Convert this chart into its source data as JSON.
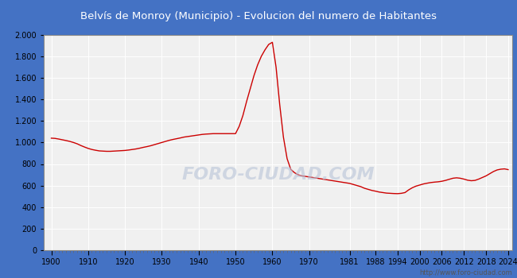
{
  "title": "Belvís de Monroy (Municipio) - Evolucion del numero de Habitantes",
  "title_color": "#ffffff",
  "title_bg_color": "#4472c4",
  "plot_bg_color": "#f0f0f0",
  "grid_color": "#ffffff",
  "line_color": "#cc0000",
  "watermark": "FORO-CIUDAD.COM",
  "footer": "http://www.foro-ciudad.com",
  "ylim": [
    0,
    2000
  ],
  "yticks": [
    0,
    200,
    400,
    600,
    800,
    1000,
    1200,
    1400,
    1600,
    1800,
    2000
  ],
  "ytick_labels": [
    "0",
    "200",
    "400",
    "600",
    "800",
    "1.000",
    "1.200",
    "1.400",
    "1.600",
    "1.800",
    "2.000"
  ],
  "xtick_labels": [
    "1900",
    "1910",
    "1920",
    "1930",
    "1940",
    "1950",
    "1960",
    "1970",
    "1981",
    "1988",
    "1994",
    "2000",
    "2006",
    "2012",
    "2018",
    "2024"
  ],
  "data": [
    [
      1900,
      1040
    ],
    [
      1901,
      1038
    ],
    [
      1902,
      1032
    ],
    [
      1903,
      1025
    ],
    [
      1904,
      1018
    ],
    [
      1905,
      1010
    ],
    [
      1906,
      1000
    ],
    [
      1907,
      988
    ],
    [
      1908,
      972
    ],
    [
      1909,
      958
    ],
    [
      1910,
      945
    ],
    [
      1911,
      935
    ],
    [
      1912,
      928
    ],
    [
      1913,
      922
    ],
    [
      1914,
      920
    ],
    [
      1915,
      918
    ],
    [
      1916,
      918
    ],
    [
      1917,
      920
    ],
    [
      1918,
      922
    ],
    [
      1919,
      924
    ],
    [
      1920,
      926
    ],
    [
      1921,
      930
    ],
    [
      1922,
      935
    ],
    [
      1923,
      940
    ],
    [
      1924,
      947
    ],
    [
      1925,
      955
    ],
    [
      1926,
      962
    ],
    [
      1927,
      970
    ],
    [
      1928,
      980
    ],
    [
      1929,
      990
    ],
    [
      1930,
      1000
    ],
    [
      1931,
      1010
    ],
    [
      1932,
      1020
    ],
    [
      1933,
      1028
    ],
    [
      1934,
      1035
    ],
    [
      1935,
      1042
    ],
    [
      1936,
      1050
    ],
    [
      1937,
      1055
    ],
    [
      1938,
      1060
    ],
    [
      1939,
      1065
    ],
    [
      1940,
      1070
    ],
    [
      1941,
      1075
    ],
    [
      1942,
      1078
    ],
    [
      1943,
      1080
    ],
    [
      1944,
      1082
    ],
    [
      1945,
      1082
    ],
    [
      1946,
      1082
    ],
    [
      1947,
      1082
    ],
    [
      1948,
      1082
    ],
    [
      1949,
      1082
    ],
    [
      1950,
      1082
    ],
    [
      1951,
      1150
    ],
    [
      1952,
      1250
    ],
    [
      1953,
      1380
    ],
    [
      1954,
      1500
    ],
    [
      1955,
      1620
    ],
    [
      1956,
      1720
    ],
    [
      1957,
      1800
    ],
    [
      1958,
      1860
    ],
    [
      1959,
      1910
    ],
    [
      1960,
      1930
    ],
    [
      1961,
      1700
    ],
    [
      1962,
      1350
    ],
    [
      1963,
      1050
    ],
    [
      1964,
      850
    ],
    [
      1965,
      750
    ],
    [
      1966,
      720
    ],
    [
      1967,
      700
    ],
    [
      1968,
      690
    ],
    [
      1969,
      685
    ],
    [
      1970,
      680
    ],
    [
      1981,
      620
    ],
    [
      1982,
      610
    ],
    [
      1983,
      600
    ],
    [
      1984,
      590
    ],
    [
      1985,
      575
    ],
    [
      1986,
      565
    ],
    [
      1987,
      555
    ],
    [
      1988,
      548
    ],
    [
      1989,
      540
    ],
    [
      1990,
      535
    ],
    [
      1991,
      530
    ],
    [
      1992,
      528
    ],
    [
      1993,
      526
    ],
    [
      1994,
      525
    ],
    [
      1995,
      528
    ],
    [
      1996,
      535
    ],
    [
      1997,
      560
    ],
    [
      1998,
      580
    ],
    [
      1999,
      595
    ],
    [
      2000,
      605
    ],
    [
      2001,
      615
    ],
    [
      2002,
      622
    ],
    [
      2003,
      628
    ],
    [
      2004,
      632
    ],
    [
      2005,
      635
    ],
    [
      2006,
      640
    ],
    [
      2007,
      648
    ],
    [
      2008,
      658
    ],
    [
      2009,
      668
    ],
    [
      2010,
      672
    ],
    [
      2011,
      668
    ],
    [
      2012,
      660
    ],
    [
      2013,
      650
    ],
    [
      2014,
      645
    ],
    [
      2015,
      648
    ],
    [
      2016,
      660
    ],
    [
      2017,
      675
    ],
    [
      2018,
      690
    ],
    [
      2019,
      710
    ],
    [
      2020,
      730
    ],
    [
      2021,
      745
    ],
    [
      2022,
      752
    ],
    [
      2023,
      755
    ],
    [
      2024,
      748
    ]
  ]
}
